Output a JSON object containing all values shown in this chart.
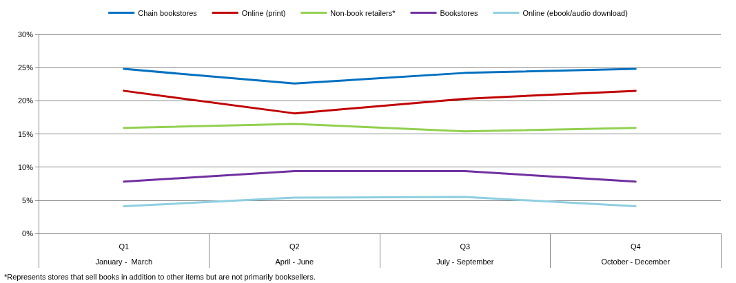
{
  "chart_data": {
    "type": "line",
    "categories": [
      "Q1\nJanuary -  March",
      "Q2\nApril - June",
      "Q3\nJuly - September",
      "Q4\nOctober - December"
    ],
    "series": [
      {
        "name": "Chain bookstores",
        "color": "#0070c0",
        "values": [
          24.8,
          22.6,
          24.2,
          24.8
        ]
      },
      {
        "name": "Online (print)",
        "color": "#c00000",
        "values": [
          21.5,
          18.1,
          20.3,
          21.5
        ]
      },
      {
        "name": "Non-book retailers*",
        "color": "#92d050",
        "values": [
          15.9,
          16.5,
          15.4,
          15.9
        ]
      },
      {
        "name": "Bookstores",
        "color": "#7030a0",
        "values": [
          7.8,
          9.4,
          9.4,
          7.8
        ]
      },
      {
        "name": "Online (ebook/audio download)",
        "color": "#8ecfe0",
        "values": [
          4.1,
          5.4,
          5.5,
          4.1
        ]
      }
    ],
    "ylim": [
      0,
      30
    ],
    "yticks": [
      {
        "value": 0,
        "label": "0%"
      },
      {
        "value": 5,
        "label": "5%"
      },
      {
        "value": 10,
        "label": "10%"
      },
      {
        "value": 15,
        "label": "15%"
      },
      {
        "value": 20,
        "label": "20%"
      },
      {
        "value": 25,
        "label": "25%"
      },
      {
        "value": 30,
        "label": "30%"
      }
    ],
    "grid": "y",
    "legend": "top",
    "marker": "none",
    "line_style": "solid",
    "annotations": [
      "*Represents stores that sell books in addition to other items but are not primarily booksellers."
    ]
  }
}
